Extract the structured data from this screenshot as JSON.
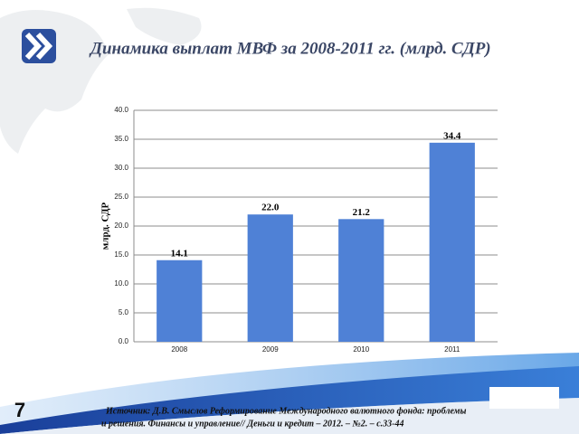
{
  "chart_data": {
    "type": "bar",
    "title": "Динамика выплат МВФ за 2008-2011 гг. (млрд. СДР)",
    "y_label": "млрд. СДР",
    "categories": [
      "2008",
      "2009",
      "2010",
      "2011"
    ],
    "values": [
      14.1,
      22.0,
      21.2,
      34.4
    ],
    "value_labels": [
      "14.1",
      "22.0",
      "21.2",
      "34.4"
    ],
    "color": "#4f81d6",
    "ylim": [
      0,
      40
    ],
    "yticks": [
      {
        "value": 0,
        "label": "0.0"
      },
      {
        "value": 5,
        "label": "5.0"
      },
      {
        "value": 10,
        "label": "10.0"
      },
      {
        "value": 15,
        "label": "15.0"
      },
      {
        "value": 20,
        "label": "20.0"
      },
      {
        "value": 25,
        "label": "25.0"
      },
      {
        "value": 30,
        "label": "30.0"
      },
      {
        "value": 35,
        "label": "35.0"
      },
      {
        "value": 40,
        "label": "40.0"
      }
    ],
    "grid": true
  },
  "slide": {
    "page_number": "7",
    "source": [
      "Источник: Д.В. Смыслов Реформирование Международного валютного фонда: проблемы",
      "и решения. Финансы и управление// Деньги и кредит – 2012. – №2. – с.33-44"
    ]
  }
}
